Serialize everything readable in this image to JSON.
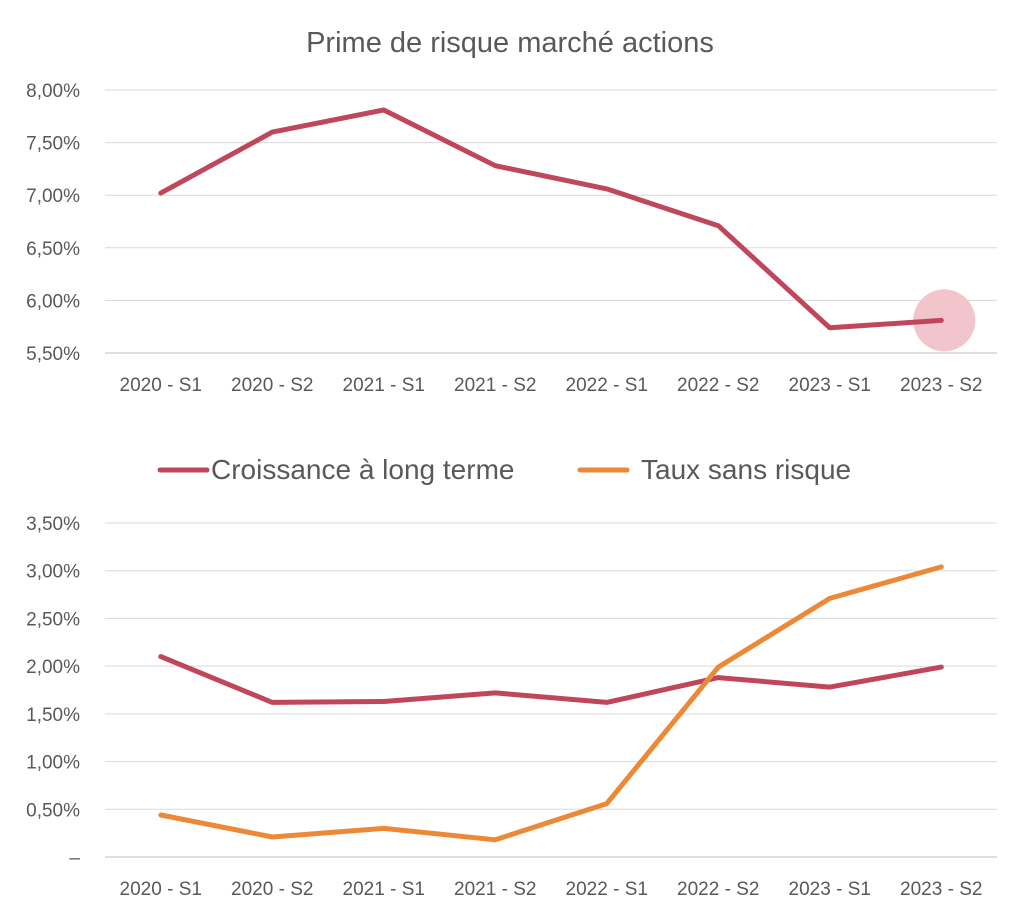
{
  "chart_data": [
    {
      "type": "line",
      "title": "Prime de risque marché actions",
      "categories": [
        "2020 - S1",
        "2020 - S2",
        "2021 - S1",
        "2021 - S2",
        "2022 - S1",
        "2022 - S2",
        "2023 - S1",
        "2023 - S2"
      ],
      "series": [
        {
          "color": "#c0475b",
          "values": [
            7.02,
            7.6,
            7.81,
            7.28,
            7.06,
            6.71,
            5.74,
            5.81
          ]
        }
      ],
      "y_ticks": [
        "5,50%",
        "6,00%",
        "6,50%",
        "7,00%",
        "7,50%",
        "8,00%"
      ],
      "ylim": [
        5.5,
        8.0
      ],
      "grid": true,
      "legend": "none",
      "highlight": {
        "category": "2023 - S2",
        "color": "#f2c4cb"
      }
    },
    {
      "type": "line",
      "title": "",
      "categories": [
        "2020 - S1",
        "2020 - S2",
        "2021 - S1",
        "2021 - S2",
        "2022 - S1",
        "2022 - S2",
        "2023 - S1",
        "2023 - S2"
      ],
      "series": [
        {
          "name": "Croissance à long terme",
          "color": "#c0475b",
          "values": [
            2.1,
            1.62,
            1.63,
            1.72,
            1.62,
            1.88,
            1.78,
            1.99
          ]
        },
        {
          "name": "Taux sans risque",
          "color": "#ed8936",
          "values": [
            0.44,
            0.21,
            0.3,
            0.18,
            0.56,
            1.99,
            2.71,
            3.04
          ]
        }
      ],
      "y_ticks": [
        "–",
        "0,50%",
        "1,00%",
        "1,50%",
        "2,00%",
        "2,50%",
        "3,00%",
        "3,50%"
      ],
      "ylim": [
        0,
        3.5
      ],
      "grid": true,
      "legend": "top"
    }
  ]
}
